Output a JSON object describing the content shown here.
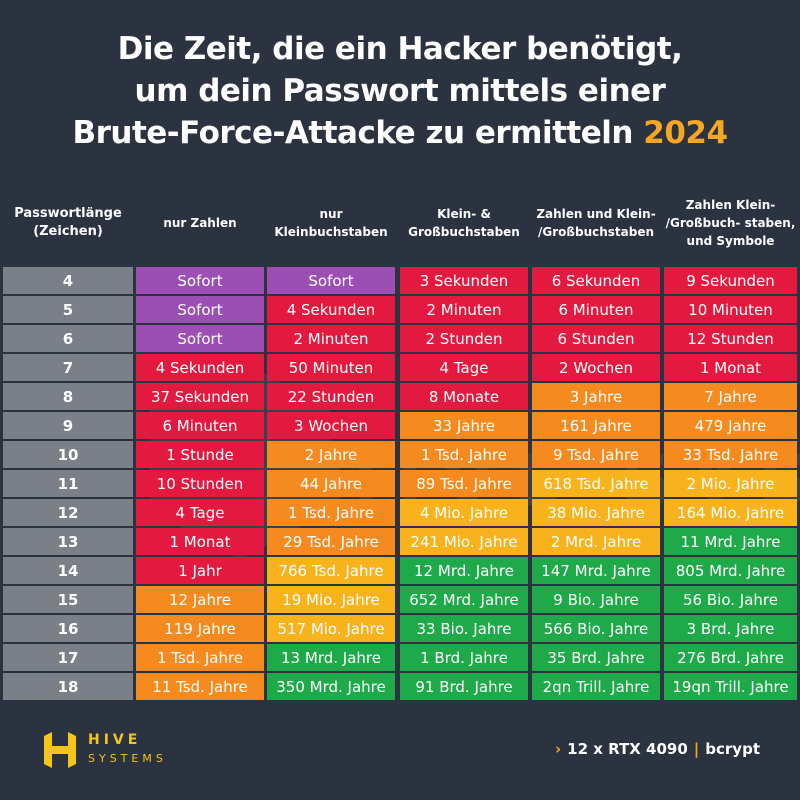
{
  "title": {
    "line1": "Die Zeit, die ein Hacker benötigt,",
    "line2": "um dein Passwort mittels einer",
    "line3": "Brute-Force-Attacke zu ermitteln",
    "year": "2024"
  },
  "header": {
    "length": "Passwortlänge (Zeichen)",
    "cols": [
      "nur Zahlen",
      "nur Kleinbuchstaben",
      "Klein- & Großbuchstaben",
      "Zahlen und Klein- /Großbuchstaben",
      "Zahlen Klein- /Großbuch- staben, und Symbole"
    ]
  },
  "rows": [
    {
      "len": "4",
      "cells": [
        "Sofort",
        "Sofort",
        "3 Sekunden",
        "6 Sekunden",
        "9 Sekunden"
      ],
      "colors": [
        "purple",
        "purple",
        "red",
        "red",
        "red"
      ]
    },
    {
      "len": "5",
      "cells": [
        "Sofort",
        "4 Sekunden",
        "2 Minuten",
        "6 Minuten",
        "10 Minuten"
      ],
      "colors": [
        "purple",
        "red",
        "red",
        "red",
        "red"
      ]
    },
    {
      "len": "6",
      "cells": [
        "Sofort",
        "2 Minuten",
        "2 Stunden",
        "6 Stunden",
        "12 Stunden"
      ],
      "colors": [
        "purple",
        "red",
        "red",
        "red",
        "red"
      ]
    },
    {
      "len": "7",
      "cells": [
        "4 Sekunden",
        "50 Minuten",
        "4 Tage",
        "2 Wochen",
        "1 Monat"
      ],
      "colors": [
        "red",
        "red",
        "red",
        "red",
        "red"
      ]
    },
    {
      "len": "8",
      "cells": [
        "37 Sekunden",
        "22 Stunden",
        "8 Monate",
        "3 Jahre",
        "7 Jahre"
      ],
      "colors": [
        "red",
        "red",
        "red",
        "orange",
        "orange"
      ]
    },
    {
      "len": "9",
      "cells": [
        "6 Minuten",
        "3 Wochen",
        "33 Jahre",
        "161 Jahre",
        "479 Jahre"
      ],
      "colors": [
        "red",
        "red",
        "orange",
        "orange",
        "orange"
      ]
    },
    {
      "len": "10",
      "cells": [
        "1 Stunde",
        "2 Jahre",
        "1 Tsd. Jahre",
        "9 Tsd. Jahre",
        "33 Tsd. Jahre"
      ],
      "colors": [
        "red",
        "orange",
        "orange",
        "orange",
        "orange"
      ]
    },
    {
      "len": "11",
      "cells": [
        "10 Stunden",
        "44 Jahre",
        "89 Tsd. Jahre",
        "618 Tsd. Jahre",
        "2 Mio. Jahre"
      ],
      "colors": [
        "red",
        "orange",
        "orange",
        "yellow",
        "yellow"
      ]
    },
    {
      "len": "12",
      "cells": [
        "4 Tage",
        "1 Tsd. Jahre",
        "4 Mio. Jahre",
        "38 Mio. Jahre",
        "164 Mio. Jahre"
      ],
      "colors": [
        "red",
        "orange",
        "yellow",
        "yellow",
        "yellow"
      ]
    },
    {
      "len": "13",
      "cells": [
        "1 Monat",
        "29 Tsd. Jahre",
        "241 Mio. Jahre",
        "2 Mrd. Jahre",
        "11 Mrd. Jahre"
      ],
      "colors": [
        "red",
        "orange",
        "yellow",
        "yellow",
        "green"
      ]
    },
    {
      "len": "14",
      "cells": [
        "1 Jahr",
        "766 Tsd. Jahre",
        "12 Mrd. Jahre",
        "147 Mrd. Jahre",
        "805 Mrd. Jahre"
      ],
      "colors": [
        "red",
        "yellow",
        "green",
        "green",
        "green"
      ]
    },
    {
      "len": "15",
      "cells": [
        "12 Jahre",
        "19 Mio. Jahre",
        "652 Mrd. Jahre",
        "9 Bio. Jahre",
        "56 Bio. Jahre"
      ],
      "colors": [
        "orange",
        "yellow",
        "green",
        "green",
        "green"
      ]
    },
    {
      "len": "16",
      "cells": [
        "119 Jahre",
        "517 Mio. Jahre",
        "33 Bio. Jahre",
        "566 Bio. Jahre",
        "3 Brd. Jahre"
      ],
      "colors": [
        "orange",
        "yellow",
        "green",
        "green",
        "green"
      ]
    },
    {
      "len": "17",
      "cells": [
        "1 Tsd. Jahre",
        "13 Mrd. Jahre",
        "1 Brd. Jahre",
        "35 Brd. Jahre",
        "276 Brd. Jahre"
      ],
      "colors": [
        "orange",
        "green",
        "green",
        "green",
        "green"
      ]
    },
    {
      "len": "18",
      "cells": [
        "11 Tsd. Jahre",
        "350 Mrd. Jahre",
        "91 Brd. Jahre",
        "2qn Trill. Jahre",
        "19qn Trill. Jahre"
      ],
      "colors": [
        "orange",
        "green",
        "green",
        "green",
        "green"
      ]
    }
  ],
  "palette": {
    "purple": "#9b4fb3",
    "red": "#e3193f",
    "orange": "#f58a1f",
    "yellow": "#f7b21c",
    "green": "#1faa4a",
    "length_bg": "#7a7f88",
    "background": "#2b3240",
    "accent": "#f5a623"
  },
  "logo": {
    "name": "HIVE",
    "sub": "SYSTEMS",
    "icon": "hive-logo-icon"
  },
  "watermark": "HIVE SYSTEMS",
  "footer": {
    "hardware": "12 x RTX 4090",
    "separator": "|",
    "hash": "bcrypt",
    "chevron": "›"
  }
}
